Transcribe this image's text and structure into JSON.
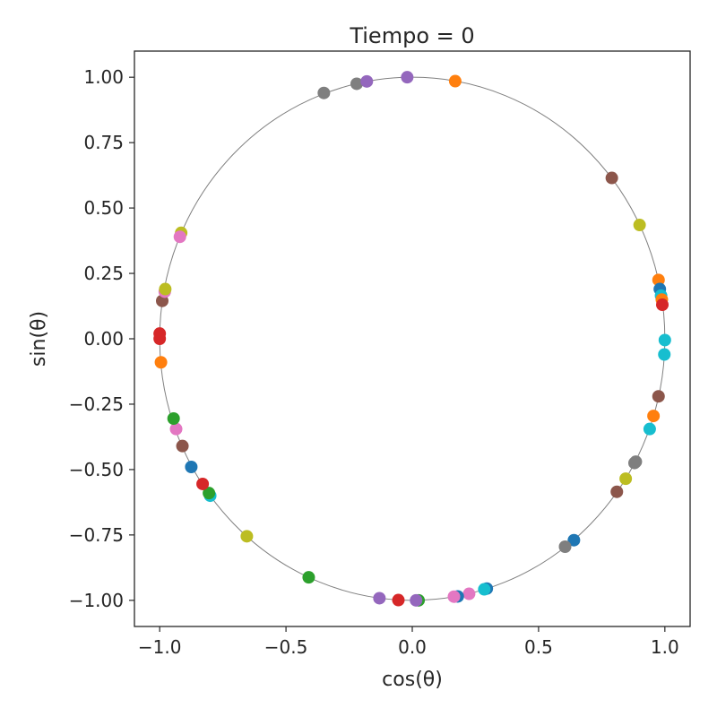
{
  "chart_data": {
    "type": "scatter",
    "title": "Tiempo = 0",
    "xlabel": "cos(θ)",
    "ylabel": "sin(θ)",
    "xlim": [
      -1.1,
      1.1
    ],
    "ylim": [
      -1.1,
      1.1
    ],
    "xticks": [
      -1.0,
      -0.5,
      0.0,
      0.5,
      1.0
    ],
    "xtick_labels": [
      "−1.0",
      "−0.5",
      "0.0",
      "0.5",
      "1.0"
    ],
    "yticks": [
      1.0,
      0.75,
      0.5,
      0.25,
      0.0,
      -0.25,
      -0.5,
      -0.75,
      -1.0
    ],
    "ytick_labels": [
      "1.00",
      "0.75",
      "0.50",
      "0.25",
      "0.00",
      "−0.25",
      "−0.50",
      "−0.75",
      "−1.00"
    ],
    "grid": false,
    "legend": "none",
    "reference_curve": {
      "shape": "unit-circle",
      "color": "#808080"
    },
    "points": [
      {
        "x": -0.35,
        "y": 0.94,
        "color": "#7f7f7f"
      },
      {
        "x": -0.22,
        "y": 0.975,
        "color": "#7f7f7f"
      },
      {
        "x": -0.18,
        "y": 0.984,
        "color": "#9467bd"
      },
      {
        "x": -0.02,
        "y": 1.0,
        "color": "#9467bd"
      },
      {
        "x": 0.17,
        "y": 0.985,
        "color": "#ff7f0e"
      },
      {
        "x": 0.79,
        "y": 0.615,
        "color": "#8c564b"
      },
      {
        "x": 0.9,
        "y": 0.435,
        "color": "#bcbd22"
      },
      {
        "x": 0.975,
        "y": 0.225,
        "color": "#ff7f0e"
      },
      {
        "x": 0.98,
        "y": 0.19,
        "color": "#1f77b4"
      },
      {
        "x": 0.985,
        "y": 0.165,
        "color": "#17becf"
      },
      {
        "x": 0.988,
        "y": 0.15,
        "color": "#ff7f0e"
      },
      {
        "x": 0.99,
        "y": 0.13,
        "color": "#d62728"
      },
      {
        "x": 1.0,
        "y": -0.005,
        "color": "#17becf"
      },
      {
        "x": 0.998,
        "y": -0.06,
        "color": "#17becf"
      },
      {
        "x": 0.975,
        "y": -0.22,
        "color": "#8c564b"
      },
      {
        "x": 0.955,
        "y": -0.295,
        "color": "#ff7f0e"
      },
      {
        "x": 0.94,
        "y": -0.345,
        "color": "#17becf"
      },
      {
        "x": 0.885,
        "y": -0.47,
        "color": "#7f7f7f"
      },
      {
        "x": 0.88,
        "y": -0.475,
        "color": "#7f7f7f"
      },
      {
        "x": 0.845,
        "y": -0.535,
        "color": "#bcbd22"
      },
      {
        "x": 0.81,
        "y": -0.585,
        "color": "#8c564b"
      },
      {
        "x": 0.64,
        "y": -0.77,
        "color": "#1f77b4"
      },
      {
        "x": 0.605,
        "y": -0.795,
        "color": "#7f7f7f"
      },
      {
        "x": 0.295,
        "y": -0.955,
        "color": "#1f77b4"
      },
      {
        "x": 0.285,
        "y": -0.958,
        "color": "#17becf"
      },
      {
        "x": 0.225,
        "y": -0.975,
        "color": "#e377c2"
      },
      {
        "x": 0.18,
        "y": -0.985,
        "color": "#1f77b4"
      },
      {
        "x": 0.165,
        "y": -0.986,
        "color": "#e377c2"
      },
      {
        "x": 0.025,
        "y": -1.0,
        "color": "#2ca02c"
      },
      {
        "x": 0.015,
        "y": -1.0,
        "color": "#9467bd"
      },
      {
        "x": -0.055,
        "y": -0.999,
        "color": "#d62728"
      },
      {
        "x": -0.13,
        "y": -0.992,
        "color": "#9467bd"
      },
      {
        "x": -0.41,
        "y": -0.912,
        "color": "#2ca02c"
      },
      {
        "x": -0.655,
        "y": -0.755,
        "color": "#bcbd22"
      },
      {
        "x": -0.8,
        "y": -0.6,
        "color": "#17becf"
      },
      {
        "x": -0.805,
        "y": -0.59,
        "color": "#2ca02c"
      },
      {
        "x": -0.83,
        "y": -0.555,
        "color": "#d62728"
      },
      {
        "x": -0.875,
        "y": -0.49,
        "color": "#1f77b4"
      }
    ],
    "points_left": [
      {
        "x": -0.91,
        "y": -0.41,
        "color": "#8c564b"
      },
      {
        "x": -0.935,
        "y": -0.345,
        "color": "#e377c2"
      },
      {
        "x": -0.945,
        "y": -0.305,
        "color": "#2ca02c"
      },
      {
        "x": -0.995,
        "y": -0.09,
        "color": "#ff7f0e"
      },
      {
        "x": -1.0,
        "y": 0.0,
        "color": "#d62728"
      },
      {
        "x": -1.0,
        "y": 0.02,
        "color": "#d62728"
      },
      {
        "x": -0.99,
        "y": 0.145,
        "color": "#8c564b"
      },
      {
        "x": -0.98,
        "y": 0.18,
        "color": "#e377c2"
      },
      {
        "x": -0.978,
        "y": 0.19,
        "color": "#bcbd22"
      },
      {
        "x": -0.915,
        "y": 0.405,
        "color": "#bcbd22"
      },
      {
        "x": -0.92,
        "y": 0.39,
        "color": "#e377c2"
      }
    ]
  }
}
